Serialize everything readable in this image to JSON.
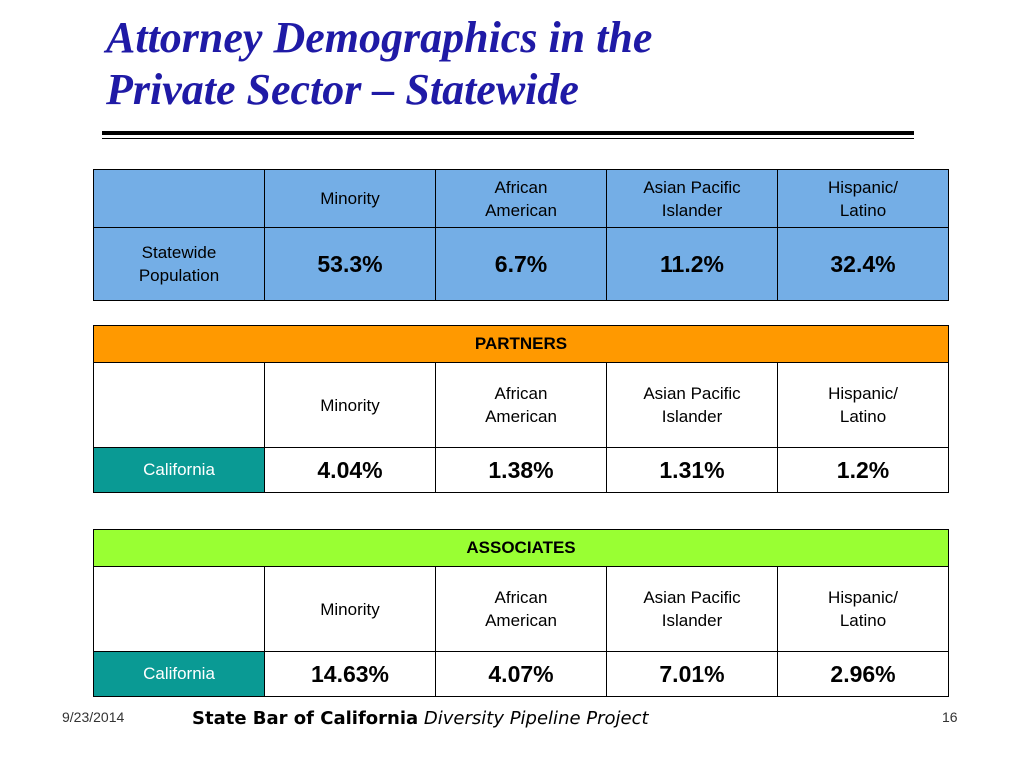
{
  "title": {
    "line1": "Attorney Demographics in the",
    "line2": "Private Sector – Statewide"
  },
  "columns": {
    "minority": "Minority",
    "african_american_1": "African",
    "african_american_2": "American",
    "asian_pacific_1": "Asian Pacific",
    "asian_pacific_2": "Islander",
    "hispanic_1": "Hispanic/",
    "hispanic_2": "Latino"
  },
  "statewide": {
    "label_1": "Statewide",
    "label_2": "Population",
    "minority": "53.3%",
    "african_american": "6.7%",
    "asian_pacific": "11.2%",
    "hispanic": "32.4%"
  },
  "partners": {
    "banner": "PARTNERS",
    "row_label": "California",
    "minority": "4.04%",
    "african_american": "1.38%",
    "asian_pacific": "1.31%",
    "hispanic": "1.2%"
  },
  "associates": {
    "banner": "ASSOCIATES",
    "row_label": "California",
    "minority": "14.63%",
    "african_american": "4.07%",
    "asian_pacific": "7.01%",
    "hispanic": "2.96%"
  },
  "footer": {
    "date": "9/23/2014",
    "org": "State Bar of California",
    "project": "Diversity Pipeline Project",
    "page": "16"
  },
  "colors": {
    "title": "#1f1aa6",
    "statewide_bg": "#74aee6",
    "partners_banner": "#ff9900",
    "associates_banner": "#99ff33",
    "california_cell": "#0a9a94"
  }
}
